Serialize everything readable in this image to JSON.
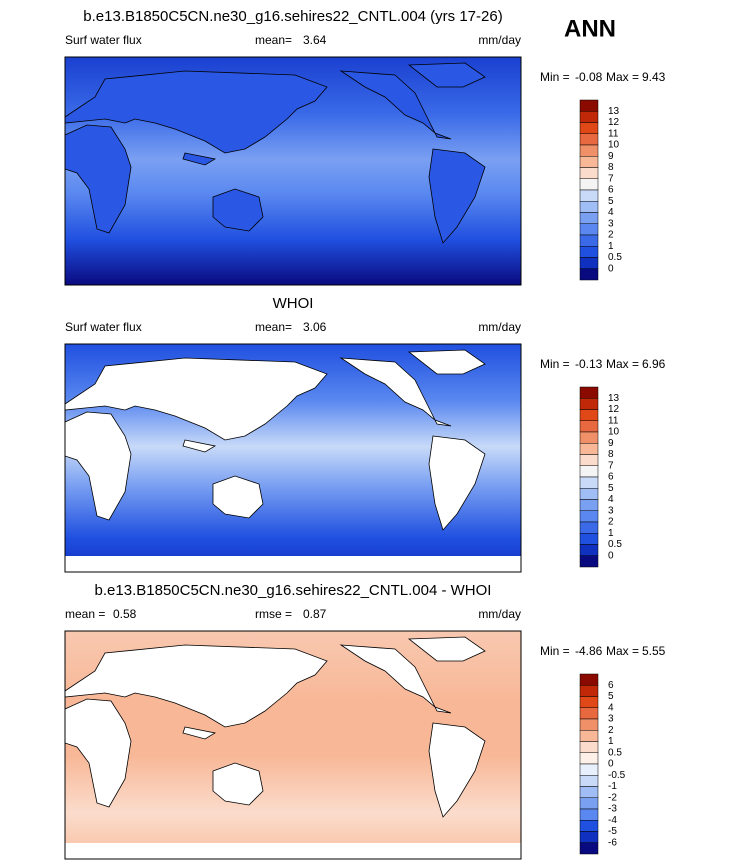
{
  "season": "ANN",
  "panels": [
    {
      "title": "b.e13.B1850C5CN.ne30_g16.sehires22_CNTL.004 (yrs 17-26)",
      "variable": "Surf water flux",
      "stats": [
        {
          "label": "mean=",
          "value": 3.64
        }
      ],
      "units": "mm/day",
      "min_label": "Min =",
      "min": -0.08,
      "max_label": "Max =",
      "max": 9.43,
      "colorbar": {
        "labels": [
          13,
          12,
          11,
          10,
          9,
          8,
          7,
          6,
          5,
          4,
          3,
          2,
          1,
          0.5,
          0
        ],
        "colors": [
          "#8b0a00",
          "#c02808",
          "#e04818",
          "#e86840",
          "#f09068",
          "#f8b898",
          "#fbdccc",
          "#f4f4f4",
          "#c8daf8",
          "#a0bef5",
          "#7aa0f2",
          "#5a88f0",
          "#3a6ae8",
          "#2050e0",
          "#1030c0",
          "#0a0a80"
        ]
      }
    },
    {
      "title": "WHOI",
      "variable": "Surf water flux",
      "stats": [
        {
          "label": "mean=",
          "value": 3.06
        }
      ],
      "units": "mm/day",
      "min_label": "Min =",
      "min": -0.13,
      "max_label": "Max =",
      "max": 6.96,
      "colorbar": {
        "labels": [
          13,
          12,
          11,
          10,
          9,
          8,
          7,
          6,
          5,
          4,
          3,
          2,
          1,
          0.5,
          0
        ],
        "colors": [
          "#8b0a00",
          "#c02808",
          "#e04818",
          "#e86840",
          "#f09068",
          "#f8b898",
          "#fbdccc",
          "#f4f4f4",
          "#c8daf8",
          "#a0bef5",
          "#7aa0f2",
          "#5a88f0",
          "#3a6ae8",
          "#2050e0",
          "#1030c0",
          "#0a0a80"
        ]
      }
    },
    {
      "title": "b.e13.B1850C5CN.ne30_g16.sehires22_CNTL.004 - WHOI",
      "variable": null,
      "stats": [
        {
          "label": "mean =",
          "value": 0.58
        },
        {
          "label": "rmse =",
          "value": 0.87
        }
      ],
      "units": "mm/day",
      "min_label": "Min =",
      "min": -4.86,
      "max_label": "Max =",
      "max": 5.55,
      "colorbar": {
        "labels": [
          6,
          5,
          4,
          3,
          2,
          1,
          0.5,
          0,
          -0.5,
          -1,
          -2,
          -3,
          -4,
          -5,
          -6
        ],
        "colors": [
          "#8b0a00",
          "#c02808",
          "#e04818",
          "#e86840",
          "#f09068",
          "#f8b898",
          "#fbdccc",
          "#fdf0e8",
          "#e8f0fc",
          "#c8daf8",
          "#a0bef5",
          "#7aa0f2",
          "#5a88f0",
          "#2050e0",
          "#1030c0",
          "#0a0a80"
        ]
      }
    }
  ]
}
